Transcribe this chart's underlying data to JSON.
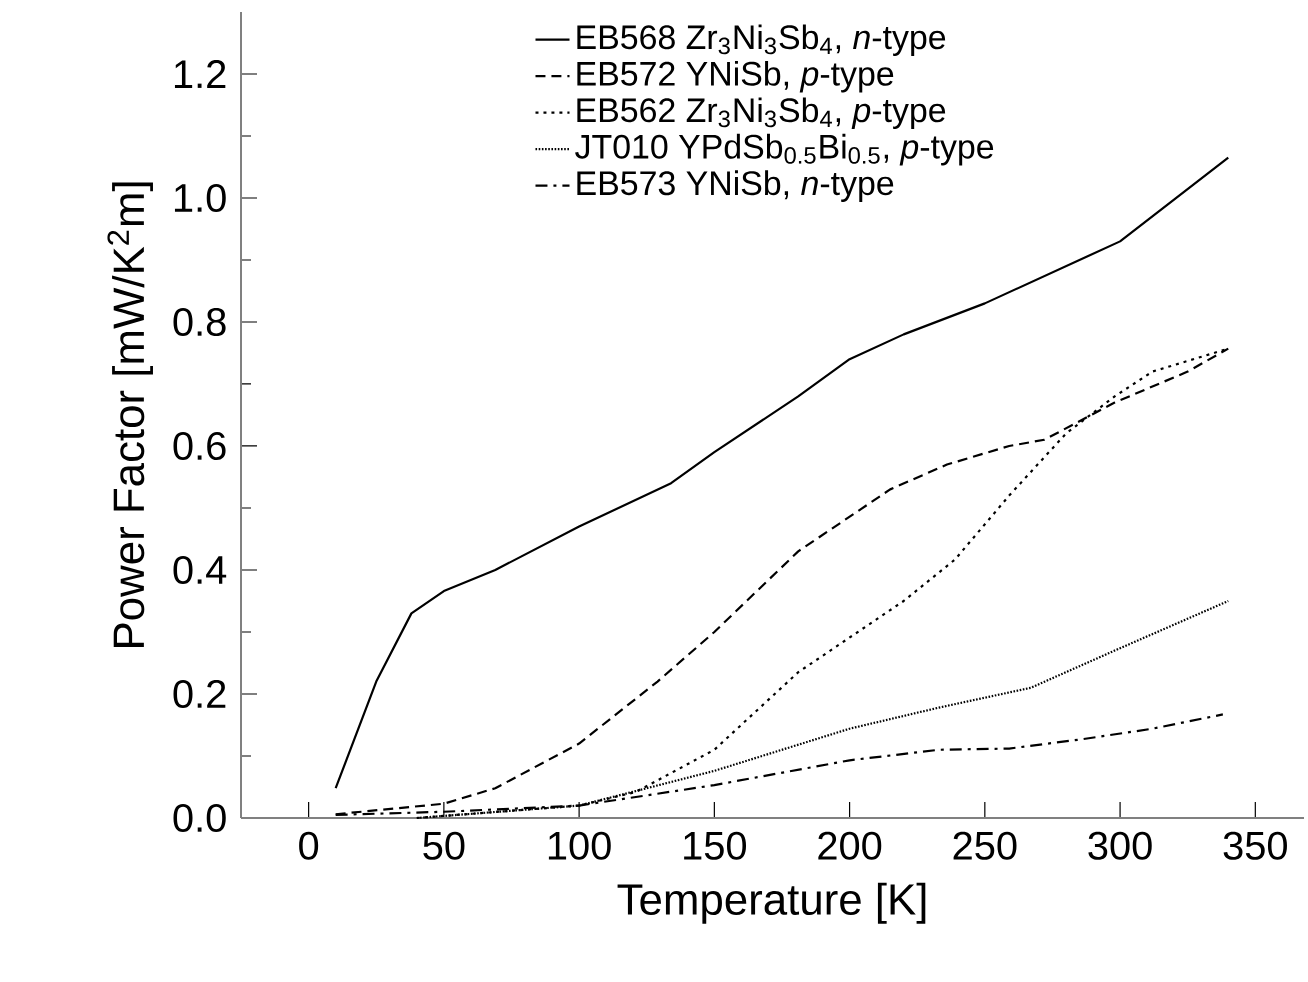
{
  "chart_data": {
    "type": "line",
    "xlabel": "Temperature [K]",
    "ylabel": "Power Factor [mW/K$^{2}$m]",
    "xlim": [
      -25,
      368
    ],
    "ylim": [
      0,
      1.3
    ],
    "xticks": [
      0,
      50,
      100,
      150,
      200,
      250,
      300,
      350
    ],
    "yticks": [
      {
        "value": 0,
        "label": "0.0"
      },
      {
        "value": 0.2,
        "label": "0.2"
      },
      {
        "value": 0.4,
        "label": "0.4"
      },
      {
        "value": 0.6,
        "label": "0.6"
      },
      {
        "value": 0.8,
        "label": "0.8"
      },
      {
        "value": 1.0,
        "label": "1.0"
      },
      {
        "value": 1.2,
        "label": "1.2"
      }
    ],
    "grid": false,
    "legend": "top",
    "marker": "none",
    "series": [
      {
        "name": "EB568 Zr$_{3}$Ni$_{3}$Sb$_{4}$, *n*-type",
        "color": "#000000",
        "line_style": "solid",
        "x": [
          10,
          25,
          38,
          50,
          69,
          100,
          134,
          150,
          181,
          200,
          220,
          250,
          300,
          340
        ],
        "values": [
          0.048,
          0.22,
          0.33,
          0.366,
          0.4,
          0.47,
          0.54,
          0.59,
          0.68,
          0.74,
          0.78,
          0.83,
          0.93,
          1.065
        ]
      },
      {
        "name": "EB572 YNiSb, *p*-type",
        "color": "#000000",
        "line_style": "dashed",
        "x": [
          10,
          50,
          69,
          100,
          129,
          150,
          181,
          215,
          236,
          259,
          272,
          298,
          325,
          340
        ],
        "values": [
          0.006,
          0.023,
          0.048,
          0.12,
          0.22,
          0.3,
          0.43,
          0.53,
          0.57,
          0.6,
          0.61,
          0.67,
          0.72,
          0.757
        ]
      },
      {
        "name": "EB562 Zr$_{3}$Ni$_{3}$Sb$_{4}$, *p*-type",
        "color": "#000000",
        "line_style": "dotted",
        "x": [
          40,
          100,
          121,
          150,
          181,
          220,
          239,
          259,
          280,
          298,
          312,
          340
        ],
        "values": [
          0.0,
          0.02,
          0.042,
          0.11,
          0.235,
          0.35,
          0.417,
          0.52,
          0.62,
          0.68,
          0.72,
          0.757
        ]
      },
      {
        "name": "JT010 YPdSb$_{0.5}$Bi$_{0.5}$, *p*-type",
        "color": "#000000",
        "line_style": "densely dotted",
        "x": [
          40,
          100,
          150,
          200,
          233,
          267,
          298,
          340
        ],
        "values": [
          0.0,
          0.02,
          0.076,
          0.144,
          0.178,
          0.21,
          0.27,
          0.35
        ]
      },
      {
        "name": "EB573 YNiSb, *n*-type",
        "color": "#000000",
        "line_style": "dashdot",
        "x": [
          10,
          50,
          100,
          150,
          200,
          233,
          259,
          286,
          312,
          338
        ],
        "values": [
          0.005,
          0.01,
          0.02,
          0.053,
          0.093,
          0.11,
          0.112,
          0.127,
          0.144,
          0.167
        ]
      }
    ]
  }
}
